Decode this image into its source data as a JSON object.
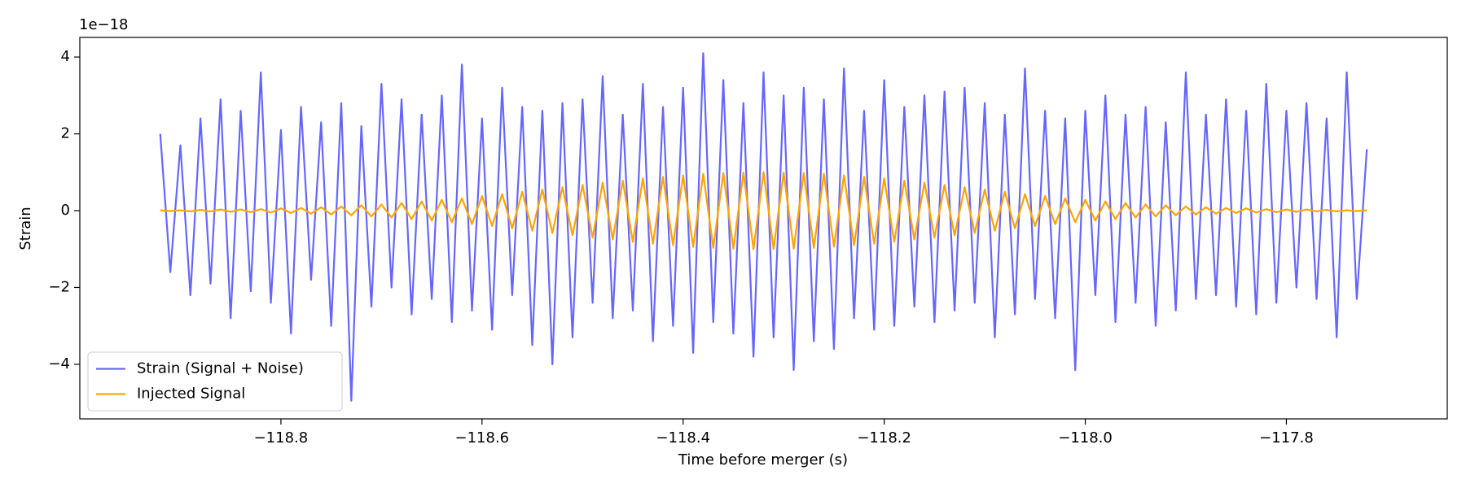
{
  "chart_data": {
    "type": "line",
    "offset_label": "1e−18",
    "xlabel": "Time before merger (s)",
    "ylabel": "Strain",
    "xlim": [
      -119.0,
      -117.64
    ],
    "ylim": [
      -5.42,
      4.51
    ],
    "xticks": [
      {
        "value": -118.8,
        "label": "−118.8"
      },
      {
        "value": -118.6,
        "label": "−118.6"
      },
      {
        "value": -118.4,
        "label": "−118.4"
      },
      {
        "value": -118.2,
        "label": "−118.2"
      },
      {
        "value": -118.0,
        "label": "−118.0"
      },
      {
        "value": -117.8,
        "label": "−117.8"
      }
    ],
    "yticks": [
      {
        "value": -4,
        "label": "−4"
      },
      {
        "value": -2,
        "label": "−2"
      },
      0,
      2,
      4
    ],
    "legend": "lower left",
    "x": [
      -118.92,
      -118.91,
      -118.9,
      -118.89,
      -118.88,
      -118.87,
      -118.86,
      -118.85,
      -118.84,
      -118.83,
      -118.82,
      -118.81,
      -118.8,
      -118.79,
      -118.78,
      -118.77,
      -118.76,
      -118.75,
      -118.74,
      -118.73,
      -118.72,
      -118.71,
      -118.7,
      -118.69,
      -118.68,
      -118.67,
      -118.66,
      -118.65,
      -118.64,
      -118.63,
      -118.62,
      -118.61,
      -118.6,
      -118.59,
      -118.58,
      -118.57,
      -118.56,
      -118.55,
      -118.54,
      -118.53,
      -118.52,
      -118.51,
      -118.5,
      -118.49,
      -118.48,
      -118.47,
      -118.46,
      -118.45,
      -118.44,
      -118.43,
      -118.42,
      -118.41,
      -118.4,
      -118.39,
      -118.38,
      -118.37,
      -118.36,
      -118.35,
      -118.34,
      -118.33,
      -118.32,
      -118.31,
      -118.3,
      -118.29,
      -118.28,
      -118.27,
      -118.26,
      -118.25,
      -118.24,
      -118.23,
      -118.22,
      -118.21,
      -118.2,
      -118.19,
      -118.18,
      -118.17,
      -118.16,
      -118.15,
      -118.14,
      -118.13,
      -118.12,
      -118.11,
      -118.1,
      -118.09,
      -118.08,
      -118.07,
      -118.06,
      -118.05,
      -118.04,
      -118.03,
      -118.02,
      -118.01,
      -118.0,
      -117.99,
      -117.98,
      -117.97,
      -117.96,
      -117.95,
      -117.94,
      -117.93,
      -117.92,
      -117.91,
      -117.9,
      -117.89,
      -117.88,
      -117.87,
      -117.86,
      -117.85,
      -117.84,
      -117.83,
      -117.82,
      -117.81,
      -117.8,
      -117.79,
      -117.78,
      -117.77,
      -117.76,
      -117.75,
      -117.74,
      -117.73,
      -117.72
    ],
    "series": [
      {
        "name": "Strain (Signal + Noise)",
        "color": "#6666ff",
        "values": [
          2.0,
          -1.6,
          1.7,
          -2.2,
          2.4,
          -1.9,
          2.9,
          -2.8,
          2.6,
          -2.1,
          3.6,
          -2.4,
          2.1,
          -3.2,
          2.7,
          -1.8,
          2.3,
          -3.0,
          2.8,
          -4.95,
          2.2,
          -2.5,
          3.3,
          -2.0,
          2.9,
          -2.7,
          2.5,
          -2.3,
          3.0,
          -2.9,
          3.8,
          -2.6,
          2.4,
          -3.1,
          3.2,
          -2.2,
          2.7,
          -3.5,
          2.6,
          -4.0,
          2.8,
          -3.3,
          2.9,
          -2.4,
          3.5,
          -2.8,
          2.5,
          -2.6,
          3.3,
          -3.4,
          2.7,
          -3.0,
          3.2,
          -3.7,
          4.1,
          -2.9,
          3.4,
          -3.2,
          2.8,
          -3.8,
          3.6,
          -3.3,
          3.0,
          -4.15,
          3.2,
          -3.4,
          2.9,
          -3.6,
          3.7,
          -2.8,
          2.6,
          -3.1,
          3.4,
          -3.0,
          2.7,
          -2.5,
          3.0,
          -2.9,
          3.1,
          -2.6,
          3.2,
          -2.4,
          2.8,
          -3.3,
          2.5,
          -2.7,
          3.7,
          -2.3,
          2.6,
          -2.8,
          2.4,
          -4.15,
          2.6,
          -2.2,
          3.0,
          -2.9,
          2.5,
          -2.4,
          2.7,
          -3.0,
          2.3,
          -2.6,
          3.6,
          -2.3,
          2.5,
          -2.2,
          2.9,
          -2.5,
          2.6,
          -2.7,
          3.3,
          -2.4,
          2.6,
          -2.0,
          2.8,
          -2.3,
          2.4,
          -3.3,
          3.6,
          -2.3,
          1.6
        ]
      },
      {
        "name": "Injected Signal",
        "color": "#ffa500",
        "values": [
          0.01,
          -0.01,
          0.01,
          -0.02,
          0.02,
          -0.02,
          0.03,
          -0.03,
          0.03,
          -0.04,
          0.04,
          -0.05,
          0.06,
          -0.06,
          0.07,
          -0.08,
          0.09,
          -0.1,
          0.11,
          -0.12,
          0.14,
          -0.15,
          0.16,
          -0.18,
          0.2,
          -0.22,
          0.24,
          -0.26,
          0.28,
          -0.3,
          0.32,
          -0.35,
          0.38,
          -0.4,
          0.43,
          -0.46,
          0.49,
          -0.52,
          0.55,
          -0.58,
          0.61,
          -0.64,
          0.67,
          -0.7,
          0.73,
          -0.75,
          0.78,
          -0.81,
          0.84,
          -0.86,
          0.88,
          -0.9,
          0.92,
          -0.94,
          0.96,
          -0.97,
          0.98,
          -0.99,
          0.99,
          -1.0,
          1.0,
          -1.0,
          0.99,
          -0.99,
          0.98,
          -0.97,
          0.96,
          -0.94,
          0.92,
          -0.9,
          0.88,
          -0.86,
          0.84,
          -0.81,
          0.78,
          -0.75,
          0.73,
          -0.7,
          0.67,
          -0.64,
          0.61,
          -0.58,
          0.55,
          -0.52,
          0.49,
          -0.46,
          0.43,
          -0.4,
          0.38,
          -0.35,
          0.32,
          -0.3,
          0.28,
          -0.26,
          0.24,
          -0.22,
          0.2,
          -0.18,
          0.16,
          -0.15,
          0.14,
          -0.12,
          0.11,
          -0.1,
          0.09,
          -0.08,
          0.07,
          -0.06,
          0.06,
          -0.05,
          0.04,
          -0.04,
          0.03,
          -0.03,
          0.03,
          -0.02,
          0.02,
          -0.02,
          0.01,
          -0.01,
          0.01
        ]
      }
    ]
  }
}
